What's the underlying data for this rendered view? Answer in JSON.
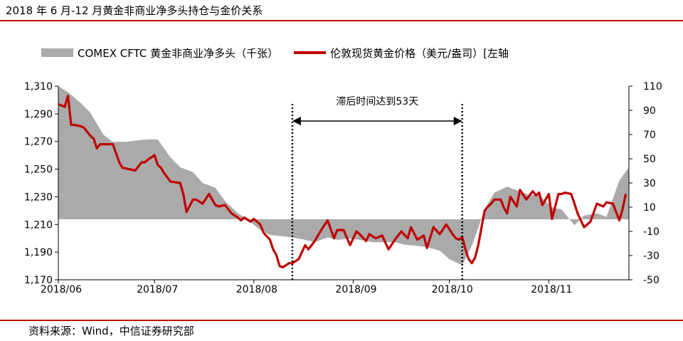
{
  "title": "2018 年 6 月-12 月黄金非商业净多头持仓与金价关系",
  "source": "资料来源：Wind，中信证券研究部",
  "chart_data": {
    "type": "line",
    "legend": {
      "placement": "top",
      "area_label": "COMEX CFTC 黄金非商业净多头（千张）",
      "line_label": "伦敦现货黄金价格（美元/盎司）[左轴"
    },
    "annotation": {
      "text": "滞后时间达到53天",
      "from_x": 73,
      "to_x": 126
    },
    "x_ticks": [
      {
        "label": "2018/06",
        "x": 0
      },
      {
        "label": "2018/07",
        "x": 30
      },
      {
        "label": "2018/08",
        "x": 61
      },
      {
        "label": "2018/09",
        "x": 92
      },
      {
        "label": "2018/10",
        "x": 122
      },
      {
        "label": "2018/11",
        "x": 153
      }
    ],
    "xlim": [
      0,
      178
    ],
    "y_left": {
      "ylim": [
        1170,
        1310
      ],
      "ticks": [
        "1,310",
        "1,290",
        "1,270",
        "1,250",
        "1,230",
        "1,210",
        "1,190",
        "1,170"
      ]
    },
    "y_right": {
      "ylim": [
        -50,
        110
      ],
      "ticks": [
        "110",
        "90",
        "70",
        "50",
        "30",
        "10",
        "-10",
        "-30",
        "-50"
      ]
    },
    "colors": {
      "area": "#aaaaaa",
      "line": "#c00000",
      "rule": "#c00000"
    },
    "series": [
      {
        "name": "COMEX CFTC 黄金非商业净多头（千张）",
        "axis": "right",
        "kind": "area",
        "x": [
          0,
          3,
          7,
          10,
          14,
          17,
          21,
          24,
          28,
          31,
          35,
          38,
          42,
          45,
          49,
          52,
          56,
          59,
          63,
          66,
          70,
          73,
          77,
          80,
          84,
          87,
          91,
          94,
          98,
          101,
          105,
          108,
          112,
          115,
          119,
          122,
          126,
          129,
          133,
          136,
          140,
          143,
          147,
          150,
          154,
          157,
          161,
          164,
          168,
          171,
          175,
          178
        ],
        "values": [
          110,
          105,
          96,
          88,
          70,
          64,
          64,
          65,
          66,
          66,
          51,
          43,
          39,
          30,
          26,
          15,
          5,
          0,
          -9,
          -13,
          -14,
          -15,
          -17,
          -19,
          -15,
          -17,
          -16,
          -17,
          -19,
          -19,
          -19,
          -21,
          -22,
          -23,
          -26,
          -33,
          -38,
          -22,
          8,
          22,
          27,
          24,
          20,
          20,
          10,
          8,
          -5,
          3,
          5,
          2,
          32,
          43
        ]
      },
      {
        "name": "伦敦现货黄金价格（美元/盎司）[左轴",
        "axis": "left",
        "kind": "line",
        "x": [
          0,
          2,
          3,
          4,
          5,
          7,
          8,
          10,
          11,
          12,
          13,
          15,
          17,
          19,
          20,
          22,
          24,
          26,
          27,
          28,
          30,
          31,
          32,
          33,
          35,
          38,
          39,
          40,
          42,
          43,
          45,
          47,
          49,
          50,
          52,
          54,
          56,
          57,
          58,
          60,
          61,
          63,
          64,
          66,
          67,
          68,
          69,
          70,
          72,
          73,
          75,
          76,
          77,
          78,
          80,
          82,
          84,
          86,
          87,
          89,
          91,
          93,
          94,
          96,
          97,
          99,
          101,
          103,
          105,
          107,
          109,
          110,
          112,
          114,
          115,
          117,
          119,
          121,
          123,
          124,
          125,
          126,
          127,
          128,
          129,
          130,
          131,
          133,
          134,
          135,
          136,
          138,
          139,
          140,
          141,
          143,
          144,
          146,
          148,
          149,
          150,
          151,
          153,
          154,
          156,
          157,
          158,
          160,
          162,
          163,
          164,
          166,
          168,
          170,
          171,
          173,
          175,
          176,
          177
        ],
        "values": [
          1297,
          1295,
          1303,
          1282,
          1282,
          1281,
          1280,
          1274,
          1272,
          1265,
          1268,
          1268,
          1268,
          1255,
          1251,
          1250,
          1249,
          1255,
          1255,
          1257,
          1260,
          1253,
          1251,
          1247,
          1241,
          1240,
          1232,
          1219,
          1228,
          1228,
          1225,
          1232,
          1224,
          1223,
          1224,
          1218,
          1215,
          1213,
          1215,
          1212,
          1214,
          1210,
          1204,
          1199,
          1192,
          1188,
          1180,
          1179,
          1182,
          1182,
          1185,
          1190,
          1195,
          1192,
          1198,
          1206,
          1213,
          1200,
          1206,
          1206,
          1195,
          1205,
          1203,
          1198,
          1203,
          1200,
          1202,
          1192,
          1199,
          1205,
          1200,
          1208,
          1199,
          1202,
          1193,
          1208,
          1203,
          1210,
          1203,
          1200,
          1199,
          1201,
          1192,
          1185,
          1182,
          1186,
          1195,
          1220,
          1223,
          1225,
          1228,
          1228,
          1222,
          1218,
          1230,
          1223,
          1235,
          1228,
          1234,
          1231,
          1233,
          1224,
          1232,
          1214,
          1232,
          1232,
          1233,
          1232,
          1218,
          1213,
          1208,
          1212,
          1225,
          1223,
          1226,
          1225,
          1213,
          1221,
          1232
        ]
      }
    ]
  }
}
